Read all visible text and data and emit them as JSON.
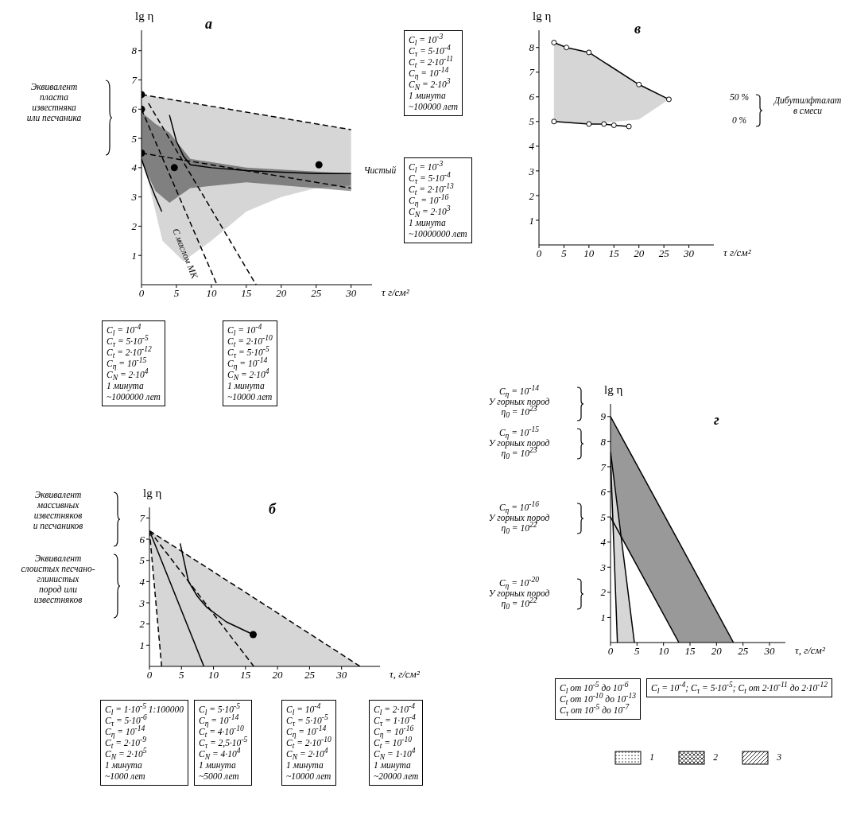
{
  "chart_data": [
    {
      "type": "line",
      "title": "а",
      "xlabel": "τ г/см²",
      "ylabel": "lg η",
      "xlim": [
        0,
        33
      ],
      "xticks": [
        0,
        5,
        10,
        15,
        20,
        25,
        30
      ],
      "ylim": [
        0,
        8.7
      ],
      "yticks": [
        1,
        2,
        3,
        4,
        5,
        6,
        7,
        8
      ],
      "series": [
        {
          "type": "line",
          "color": "#000000",
          "line_style": "dashed",
          "x": [
            0,
            1,
            3,
            6,
            10,
            15,
            20,
            25,
            30
          ],
          "values": [
            6.5,
            6.46,
            6.38,
            6.26,
            6.1,
            5.9,
            5.7,
            5.5,
            5.3
          ],
          "upper": [
            6.5,
            6.46,
            6.38,
            6.26,
            6.1,
            5.9,
            5.7,
            5.5,
            5.3
          ],
          "lower": [
            4.4,
            3.5,
            1.5,
            0.8,
            1.5,
            2.5,
            3.0,
            3.3,
            3.4
          ]
        },
        {
          "type": "line",
          "color": "#000000",
          "line_style": "dashed",
          "x": [
            0,
            2,
            4,
            7,
            15,
            30
          ],
          "values": [
            4.5,
            4.42,
            4.34,
            4.22,
            3.9,
            3.3
          ],
          "upper": [
            5.9,
            5.5,
            5.2,
            4.3,
            4.0,
            3.8
          ],
          "lower": [
            4.2,
            3.2,
            2.8,
            3.3,
            3.5,
            3.2
          ]
        },
        {
          "type": "line",
          "color": "#000000",
          "line_style": "solid",
          "x": [
            4,
            5,
            6,
            7,
            10,
            15,
            20,
            25,
            30
          ],
          "values": [
            5.8,
            4.9,
            4.4,
            4.1,
            4.0,
            3.9,
            3.85,
            3.8,
            3.8
          ]
        },
        {
          "type": "line",
          "color": "#000000",
          "line_style": "solid",
          "x": [
            0,
            1,
            2,
            2.9
          ],
          "values": [
            4.3,
            3.6,
            3.0,
            2.5
          ]
        },
        {
          "type": "line",
          "color": "#000000",
          "line_style": "dashed",
          "x": [
            0,
            10.8
          ],
          "values": [
            6.0,
            0
          ]
        },
        {
          "type": "line",
          "color": "#000000",
          "line_style": "dashed",
          "x": [
            1,
            16.4
          ],
          "values": [
            6.2,
            0
          ]
        },
        {
          "type": "scatter",
          "color": "#000000",
          "x": [
            0,
            0,
            0,
            4.7,
            25.4
          ],
          "values": [
            6.5,
            6.0,
            4.5,
            4.0,
            4.1
          ]
        }
      ],
      "annotations": [
        "Эквивалент\nпласта\nизвестняка\nили песчаника",
        "Чистый",
        "С маслом МК",
        "C$_{l}$ = 10$^{-3}$\nC$_{τ}$ = 5·10$^{-4}$\nC$_{t}$ = 2·10$^{-11}$\nC$_{η}$ = 10$^{-14}$\nC$_{N}$ = 2·10$^{3}$\n1 минута\n~100000 лет",
        "C$_{l}$ = 10$^{-3}$\nC$_{τ}$ = 5·10$^{-4}$\nC$_{t}$ = 2·10$^{-13}$\nC$_{η}$ = 10$^{-16}$\nC$_{N}$ = 2·10$^{3}$\n1 минута\n~10000000 лет",
        "C$_{l}$ = 10$^{-4}$\nC$_{τ}$ = 5·10$^{-5}$\nC$_{t}$ = 2·10$^{-12}$\nC$_{η}$ = 10$^{-15}$\nC$_{N}$ = 2·10$^{4}$\n1 минута\n~1000000 лет",
        "C$_{l}$ = 10$^{-4}$\nC$_{t}$ = 2·10$^{-10}$\nC$_{τ}$ = 5·10$^{-5}$\nC$_{η}$ = 10$^{-14}$\nC$_{N}$ = 2·10$^{4}$\n1 минута\n~10000 лет"
      ]
    },
    {
      "type": "line",
      "title": "в",
      "xlabel": "τ г/см²",
      "ylabel": "lg η",
      "xlim": [
        0,
        35
      ],
      "xticks": [
        0,
        5,
        10,
        15,
        20,
        25,
        30
      ],
      "ylim": [
        0,
        8.7
      ],
      "yticks": [
        1,
        2,
        3,
        4,
        5,
        6,
        7,
        8
      ],
      "series": [
        {
          "type": "line",
          "color": "#000000",
          "line_style": "solid",
          "marker": "circle",
          "x": [
            3,
            5.5,
            10,
            20,
            26
          ],
          "values": [
            8.2,
            8.0,
            7.8,
            6.5,
            5.9
          ],
          "upper": [
            8.2,
            8.0,
            7.8,
            6.5,
            5.9
          ],
          "lower": [
            5.0,
            4.96,
            4.9,
            5.08,
            5.9
          ]
        },
        {
          "type": "line",
          "color": "#000000",
          "line_style": "solid",
          "marker": "circle",
          "x": [
            3,
            10,
            13,
            15,
            18
          ],
          "values": [
            5.0,
            4.9,
            4.9,
            4.85,
            4.8
          ]
        }
      ],
      "annotations": [
        "50 %",
        "0 %",
        "Дибутилфталат\nв смеси"
      ]
    },
    {
      "type": "line",
      "title": "б",
      "xlabel": "τ, г/см²",
      "ylabel": "lg η",
      "xlim": [
        0,
        36
      ],
      "xticks": [
        0,
        5,
        10,
        15,
        20,
        25,
        30
      ],
      "ylim": [
        0,
        7.5
      ],
      "yticks": [
        1,
        2,
        3,
        4,
        5,
        6,
        7
      ],
      "series": [
        {
          "type": "line",
          "color": "#000000",
          "line_style": "dashed",
          "x": [
            0,
            1.9
          ],
          "values": [
            6.4,
            0
          ]
        },
        {
          "type": "line",
          "color": "#000000",
          "line_style": "solid",
          "x": [
            0,
            8.5
          ],
          "values": [
            6.4,
            0
          ]
        },
        {
          "type": "line",
          "color": "#000000",
          "line_style": "dashed",
          "x": [
            0,
            16.3
          ],
          "values": [
            6.4,
            0
          ]
        },
        {
          "type": "line",
          "color": "#000000",
          "line_style": "dashed",
          "x": [
            0,
            1.9,
            10,
            20,
            32.9
          ],
          "values": [
            6.4,
            6.03,
            4.46,
            2.52,
            0
          ],
          "upper": [
            6.4,
            6.03,
            4.46,
            2.52,
            0
          ],
          "lower": [
            6.4,
            0,
            0,
            0,
            0
          ]
        },
        {
          "type": "line",
          "color": "#000000",
          "line_style": "solid",
          "x": [
            4.8,
            6.1,
            7.5,
            8.9,
            12,
            16.2
          ],
          "values": [
            5.8,
            4.0,
            3.3,
            2.8,
            2.1,
            1.5
          ]
        },
        {
          "type": "scatter",
          "color": "#000000",
          "x": [
            16.2
          ],
          "values": [
            1.5
          ]
        }
      ],
      "annotations": [
        "Эквивалент\nмассивных\nизвестняков\nи песчаников",
        "Эквивалент\nслоистых песчано-\nглинистых\nпород или\nизвестняков",
        "C$_{l}$ = 1·10$^{-5}$ 1:100000\nC$_{τ}$ = 5·10$^{-6}$\nC$_{η}$ = 10$^{-14}$\nC$_{t}$ = 2·10$^{-9}$\nC$_{N}$ = 2·10$^{5}$\n1 минута\n~1000 лет",
        "C$_{l}$ = 5·10$^{-5}$\nC$_{η}$ = 10$^{-14}$\nC$_{t}$ = 4·10$^{-10}$\nC$_{τ}$ = 2,5·10$^{-5}$\nC$_{N}$ = 4·10$^{4}$\n1 минута\n~5000 лет",
        "C$_{l}$ = 10$^{-4}$\nC$_{τ}$ = 5·10$^{-5}$\nC$_{η}$ = 10$^{-14}$\nC$_{t}$ = 2·10$^{-10}$\nC$_{N}$ = 2·10$^{4}$\n1 минута\n~10000 лет",
        "C$_{l}$ = 2·10$^{-4}$\nC$_{τ}$ = 1·10$^{-4}$\nC$_{η}$ = 10$^{-16}$\nC$_{t}$ = 10$^{-10}$\nC$_{N}$ = 1·10$^{4}$\n1 минута\n~20000 лет"
      ]
    },
    {
      "type": "line",
      "title": "г",
      "xlabel": "τ, г/см²",
      "ylabel": "lg η",
      "xlim": [
        0,
        33
      ],
      "xticks": [
        0,
        5,
        10,
        15,
        20,
        25,
        30
      ],
      "ylim": [
        0,
        9.5
      ],
      "yticks": [
        1,
        2,
        3,
        4,
        5,
        6,
        7,
        8,
        9
      ],
      "series": [
        {
          "type": "line",
          "color": "#000000",
          "line_style": "solid",
          "x": [
            0,
            1.3,
            4.5
          ],
          "values": [
            7.6,
            5.4,
            0
          ],
          "upper": [
            7.6,
            5.4,
            0
          ],
          "lower": [
            7.4,
            0,
            0
          ]
        },
        {
          "type": "line",
          "color": "#000000",
          "line_style": "solid",
          "x": [
            0,
            2,
            12.9,
            23.2
          ],
          "values": [
            9,
            8.22,
            4.0,
            0
          ],
          "upper": [
            9,
            8.22,
            4.0,
            0
          ],
          "lower": [
            7.6,
            4.22,
            0,
            0
          ]
        },
        {
          "type": "line",
          "color": "#000000",
          "line_style": "solid",
          "x": [
            0,
            12.9
          ],
          "values": [
            5,
            0
          ]
        },
        {
          "type": "line",
          "color": "#000000",
          "line_style": "solid",
          "x": [
            0,
            1.3
          ],
          "values": [
            7.4,
            0
          ]
        }
      ],
      "annotations": [
        "C$_{η}$ = 10$^{-14}$\nУ горных пород\nη$_{0}$ = 10$^{23}$",
        "C$_{η}$ = 10$^{-15}$\nУ горных пород\nη$_{0}$ = 10$^{23}$",
        "C$_{η}$ = 10$^{-16}$\nУ горных пород\nη$_{0}$ = 10$^{22}$",
        "C$_{η}$ = 10$^{-20}$\nУ горных пород\nη$_{0}$ = 10$^{22}$",
        "C$_{l}$ от 10$^{-5}$ до 10$^{-6}$\nC$_{t}$ от 10$^{-10}$ до 10$^{-13}$\nC$_{τ}$ от 10$^{-5}$ до 10$^{-7}$",
        "C$_{l}$ = 10$^{-4}$; C$_{τ}$ = 5·10$^{-5}$; C$_{t}$ от 2·10$^{-11}$ до 2·10$^{-12}$",
        "1",
        "2",
        "3"
      ]
    }
  ]
}
